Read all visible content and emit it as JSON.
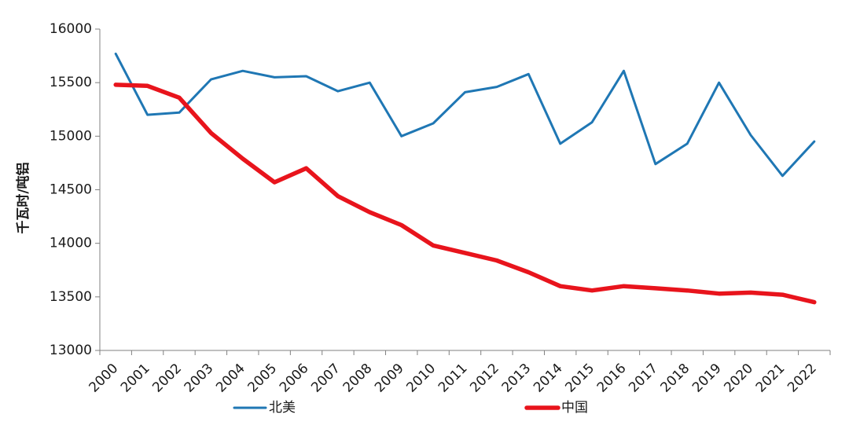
{
  "chart_data": {
    "type": "line",
    "title": "",
    "xlabel": "",
    "ylabel": "千瓦时/吨铝",
    "ylim": [
      13000,
      16000
    ],
    "yticks": [
      13000,
      13500,
      14000,
      14500,
      15000,
      15500,
      16000
    ],
    "grid": false,
    "legend_position": "bottom",
    "categories": [
      "2000",
      "2001",
      "2002",
      "2003",
      "2004",
      "2005",
      "2006",
      "2007",
      "2008",
      "2009",
      "2010",
      "2011",
      "2012",
      "2013",
      "2014",
      "2015",
      "2016",
      "2017",
      "2018",
      "2019",
      "2020",
      "2021",
      "2022"
    ],
    "series": [
      {
        "name": "北美",
        "color": "#1f77b4",
        "values": [
          15770,
          15200,
          15220,
          15530,
          15610,
          15550,
          15560,
          15420,
          15500,
          15000,
          15120,
          15410,
          15460,
          15580,
          14930,
          15130,
          15610,
          14740,
          14930,
          15500,
          15010,
          14630,
          14950
        ]
      },
      {
        "name": "中国",
        "color": "#e8141c",
        "values": [
          15480,
          15470,
          15360,
          15030,
          14790,
          14570,
          14700,
          14440,
          14290,
          14170,
          13980,
          13910,
          13840,
          13730,
          13600,
          13560,
          13600,
          13580,
          13560,
          13530,
          13540,
          13520,
          13450
        ]
      }
    ]
  }
}
